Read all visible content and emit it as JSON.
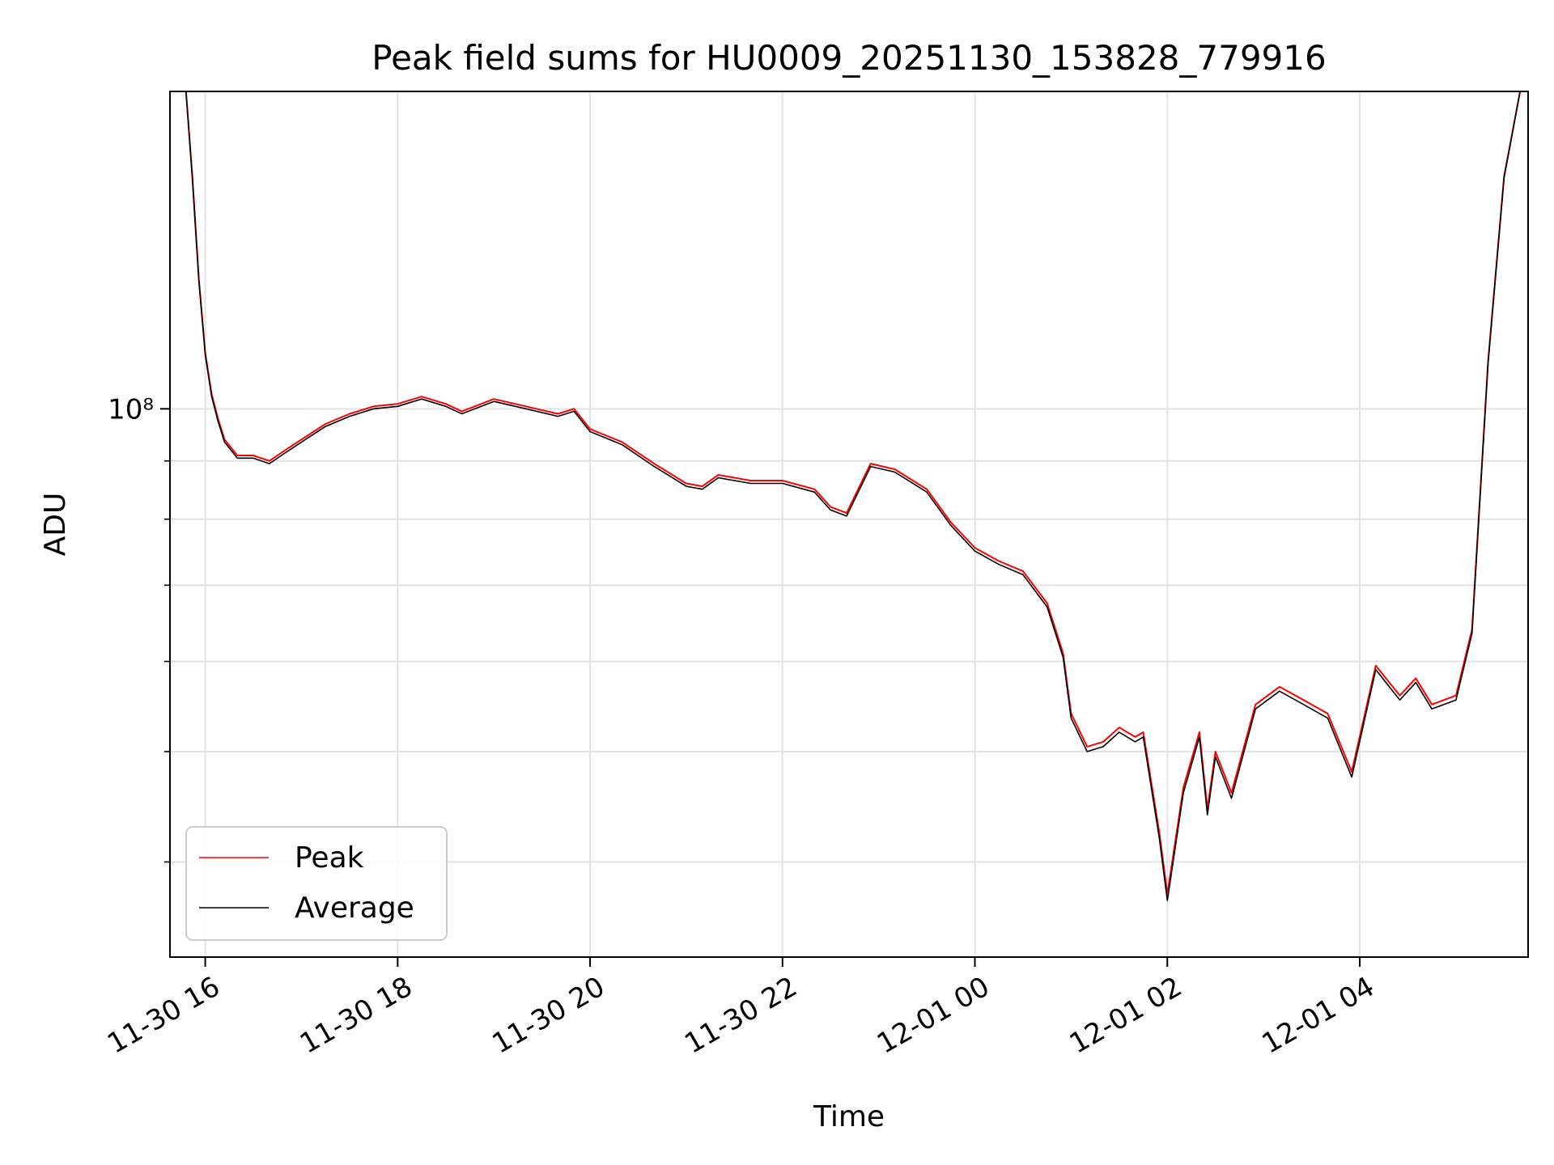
{
  "chart_data": {
    "type": "line",
    "title": "Peak field sums for HU0009_20251130_153828_779916",
    "xlabel": "Time",
    "ylabel": "ADU",
    "yscale": "log",
    "ylim": [
      33000000,
      190000000
    ],
    "xlim": [
      "2025-11-30 15:38",
      "2025-12-01 05:45"
    ],
    "x_ticks": [
      {
        "t": "2025-11-30 16:00",
        "label": "11-30 16"
      },
      {
        "t": "2025-11-30 18:00",
        "label": "11-30 18"
      },
      {
        "t": "2025-11-30 20:00",
        "label": "11-30 20"
      },
      {
        "t": "2025-11-30 22:00",
        "label": "11-30 22"
      },
      {
        "t": "2025-12-01 00:00",
        "label": "12-01 00"
      },
      {
        "t": "2025-12-01 02:00",
        "label": "12-01 02"
      },
      {
        "t": "2025-12-01 04:00",
        "label": "12-01 04"
      }
    ],
    "y_major_ticks": [
      {
        "value": 100000000,
        "label": "10⁸"
      }
    ],
    "y_minor_ticks": [
      40000000,
      50000000,
      60000000,
      70000000,
      80000000,
      90000000,
      200000000
    ],
    "grid": true,
    "legend_position": "lower-left",
    "x": [
      "2025-11-30 15:48",
      "2025-11-30 15:52",
      "2025-11-30 15:56",
      "2025-11-30 16:00",
      "2025-11-30 16:04",
      "2025-11-30 16:08",
      "2025-11-30 16:12",
      "2025-11-30 16:20",
      "2025-11-30 16:30",
      "2025-11-30 16:40",
      "2025-11-30 16:50",
      "2025-11-30 17:00",
      "2025-11-30 17:15",
      "2025-11-30 17:30",
      "2025-11-30 17:45",
      "2025-11-30 18:00",
      "2025-11-30 18:15",
      "2025-11-30 18:30",
      "2025-11-30 18:40",
      "2025-11-30 19:00",
      "2025-11-30 19:20",
      "2025-11-30 19:40",
      "2025-11-30 19:50",
      "2025-11-30 20:00",
      "2025-11-30 20:20",
      "2025-11-30 20:40",
      "2025-11-30 21:00",
      "2025-11-30 21:10",
      "2025-11-30 21:20",
      "2025-11-30 21:40",
      "2025-11-30 22:00",
      "2025-11-30 22:20",
      "2025-11-30 22:30",
      "2025-11-30 22:40",
      "2025-11-30 22:55",
      "2025-11-30 23:10",
      "2025-11-30 23:30",
      "2025-11-30 23:45",
      "2025-12-01 00:00",
      "2025-12-01 00:15",
      "2025-12-01 00:30",
      "2025-12-01 00:45",
      "2025-12-01 00:55",
      "2025-12-01 01:00",
      "2025-12-01 01:10",
      "2025-12-01 01:20",
      "2025-12-01 01:30",
      "2025-12-01 01:40",
      "2025-12-01 01:45",
      "2025-12-01 01:55",
      "2025-12-01 02:00",
      "2025-12-01 02:10",
      "2025-12-01 02:20",
      "2025-12-01 02:25",
      "2025-12-01 02:30",
      "2025-12-01 02:40",
      "2025-12-01 02:55",
      "2025-12-01 03:10",
      "2025-12-01 03:25",
      "2025-12-01 03:40",
      "2025-12-01 03:55",
      "2025-12-01 04:10",
      "2025-12-01 04:25",
      "2025-12-01 04:35",
      "2025-12-01 04:45",
      "2025-12-01 05:00",
      "2025-12-01 05:10",
      "2025-12-01 05:20",
      "2025-12-01 05:30",
      "2025-12-01 05:40"
    ],
    "series": [
      {
        "name": "Peak",
        "color": "#ff0000",
        "values": [
          190000000,
          160000000,
          130000000,
          112000000,
          103000000,
          98000000,
          94000000,
          91000000,
          91000000,
          90000000,
          92000000,
          94000000,
          97000000,
          99000000,
          100500000,
          101000000,
          102500000,
          101000000,
          99500000,
          102000000,
          100500000,
          99000000,
          100000000,
          96000000,
          93500000,
          89500000,
          86000000,
          85500000,
          87500000,
          86500000,
          86500000,
          85000000,
          82000000,
          81000000,
          89500000,
          88500000,
          85000000,
          79500000,
          75500000,
          73500000,
          72000000,
          67500000,
          61000000,
          54000000,
          50500000,
          51000000,
          52500000,
          51500000,
          52000000,
          42500000,
          37500000,
          46500000,
          52000000,
          44500000,
          50000000,
          46000000,
          55000000,
          57000000,
          55500000,
          54000000,
          48000000,
          59500000,
          56000000,
          58000000,
          55000000,
          56000000,
          64000000,
          110000000,
          160000000,
          190000000
        ]
      },
      {
        "name": "Average",
        "color": "#000000",
        "values": [
          190000000,
          159000000,
          129500000,
          111500000,
          102500000,
          97500000,
          93500000,
          90500000,
          90500000,
          89500000,
          91500000,
          93500000,
          96500000,
          98500000,
          100000000,
          100500000,
          102000000,
          100500000,
          99000000,
          101500000,
          100000000,
          98500000,
          99500000,
          95500000,
          93000000,
          89000000,
          85500000,
          85000000,
          87000000,
          86000000,
          86000000,
          84500000,
          81500000,
          80500000,
          89000000,
          88000000,
          84500000,
          79000000,
          75000000,
          73000000,
          71500000,
          67000000,
          60500000,
          53500000,
          50000000,
          50500000,
          52000000,
          51000000,
          51500000,
          42000000,
          37000000,
          46000000,
          51500000,
          44000000,
          49500000,
          45500000,
          54500000,
          56500000,
          55000000,
          53500000,
          47500000,
          59000000,
          55500000,
          57500000,
          54500000,
          55500000,
          63500000,
          109500000,
          159500000,
          190000000
        ]
      }
    ]
  }
}
